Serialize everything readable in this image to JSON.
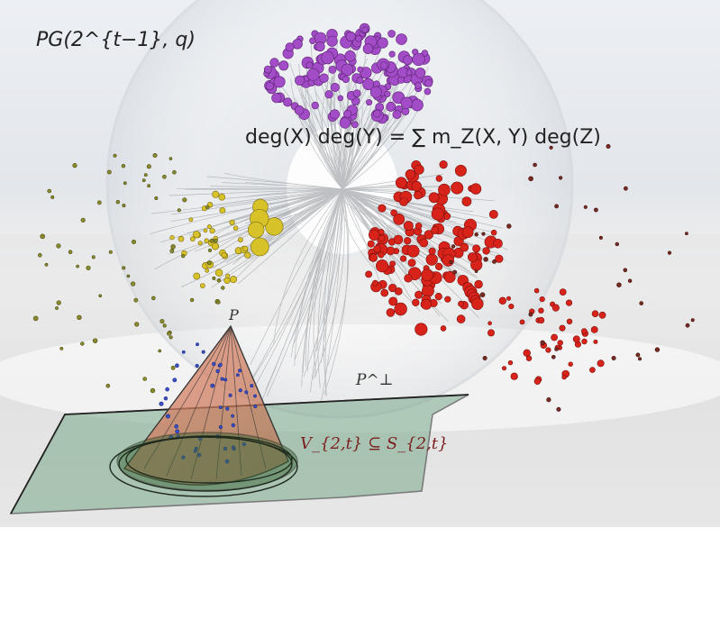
{
  "labels": {
    "projective_geometry": "PG(2^{t−1}, q)",
    "degree_formula": "deg(X) deg(Y) = ∑ m_Z(X, Y) deg(Z)",
    "subset_relation": "V_{2,t} ⊆ S_{2,t}",
    "plane_label": "P^⊥",
    "apex_label": "P"
  },
  "colors": {
    "purple_cluster": "#a24cc7",
    "red_cluster": "#d8231b",
    "yellow_cluster": "#d8c22a",
    "olive_points": "#8a8a2c",
    "cone_fill": "#d97a60",
    "plane_fill": "#7aa98c",
    "ellipse_fill": "#3e6b3a"
  }
}
